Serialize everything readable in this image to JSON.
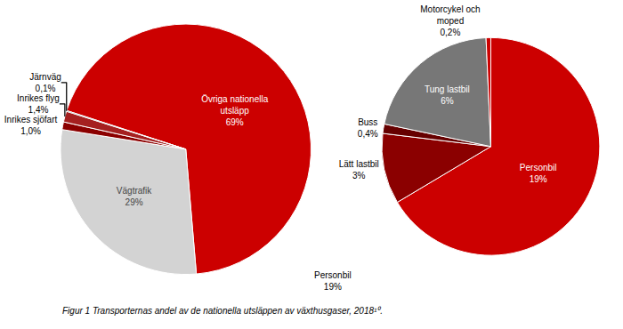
{
  "chart_data": [
    {
      "type": "pie",
      "categories": [
        "Övriga nationella\nutsläpp",
        "Vägtrafik",
        "Inrikes sjöfart",
        "Inrikes flyg",
        "Järnväg"
      ],
      "values": [
        69,
        29,
        1.0,
        1.4,
        0.1
      ],
      "value_labels": [
        "69%",
        "29%",
        "1,0%",
        "1,4%",
        "0,1%"
      ],
      "colors": [
        "#CC0000",
        "#D3D3D3",
        "#8B0000",
        "#A52020",
        "#2B2B2B"
      ],
      "data_labels": true,
      "annotations": [
        "Personbil\n19%",
        "Figur 1 Transporternas andel av de nationella utsläppen av växthusgaser, 2018¹⁰."
      ]
    },
    {
      "type": "pie",
      "categories": [
        "Personbil",
        "Lätt lastbil",
        "Buss",
        "Tung lastbil",
        "Motorcykel och\nmoped"
      ],
      "values": [
        19,
        3,
        0.4,
        6,
        0.2
      ],
      "value_labels": [
        "19%",
        "3%",
        "0,4%",
        "6%",
        "0,2%"
      ],
      "colors": [
        "#CC0000",
        "#8B0000",
        "#660000",
        "#777777",
        "#CC0000"
      ],
      "data_labels": true
    }
  ]
}
